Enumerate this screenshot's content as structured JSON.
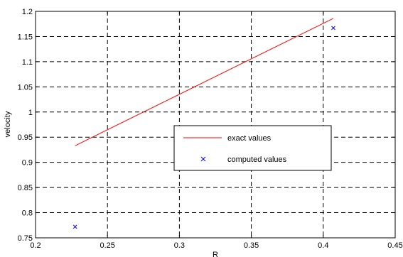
{
  "chart_data": {
    "type": "line",
    "title": "",
    "xlabel": "R",
    "ylabel": "velocity",
    "xlim": [
      0.2,
      0.45
    ],
    "ylim": [
      0.75,
      1.2
    ],
    "xticks": [
      0.2,
      0.25,
      0.3,
      0.35,
      0.4,
      0.45
    ],
    "yticks": [
      0.75,
      0.8,
      0.85,
      0.9,
      0.95,
      1,
      1.05,
      1.1,
      1.15,
      1.2
    ],
    "xtick_labels": [
      "0.2",
      "0.25",
      "0.3",
      "0.35",
      "0.4",
      "0.45"
    ],
    "ytick_labels": [
      "0.75",
      "0.8",
      "0.85",
      "0.9",
      "0.95",
      "1",
      "1.05",
      "1.1",
      "1.15",
      "1.2"
    ],
    "grid": true,
    "grid_style": "dashed",
    "legend_position": "center-right",
    "series": [
      {
        "name": "exact values",
        "kind": "line",
        "color": "#ff0000",
        "x": [
          0.2275,
          0.407
        ],
        "y": [
          0.933,
          1.186
        ]
      },
      {
        "name": "computed values",
        "kind": "marker",
        "marker": "x",
        "color": "#0000ff",
        "x": [
          0.2275,
          0.407
        ],
        "y": [
          0.772,
          1.167
        ]
      }
    ]
  }
}
